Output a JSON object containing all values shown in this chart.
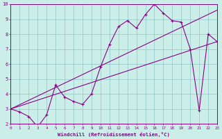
{
  "xlabel": "Windchill (Refroidissement éolien,°C)",
  "bg_color": "#cceee8",
  "line_color": "#880088",
  "grid_color": "#99cccc",
  "xmin": 0,
  "xmax": 23,
  "ymin": 2,
  "ymax": 10,
  "line1_x": [
    0,
    1,
    2,
    3,
    4,
    5,
    6,
    7,
    8,
    9,
    10,
    11,
    12,
    13,
    14,
    15,
    16,
    17,
    18,
    19,
    20,
    21,
    22,
    23
  ],
  "line1_y": [
    3.0,
    2.8,
    2.5,
    1.8,
    2.6,
    4.6,
    3.8,
    3.5,
    3.3,
    4.0,
    5.8,
    7.3,
    8.5,
    8.9,
    8.4,
    9.3,
    10.0,
    9.4,
    8.9,
    8.8,
    7.0,
    2.9,
    8.0,
    7.5
  ],
  "line2_x": [
    0,
    23
  ],
  "line2_y": [
    3.0,
    7.5
  ],
  "line3_x": [
    0,
    23
  ],
  "line3_y": [
    3.0,
    9.6
  ],
  "ytick_vals": [
    2,
    3,
    4,
    5,
    6,
    7,
    8,
    9,
    10
  ],
  "xtick_labels": [
    "0",
    "1",
    "2",
    "3",
    "4",
    "5",
    "6",
    "7",
    "8",
    "9",
    "10",
    "11",
    "12",
    "13",
    "14",
    "15",
    "16",
    "17",
    "18",
    "19",
    "20",
    "21",
    "22",
    "23"
  ]
}
